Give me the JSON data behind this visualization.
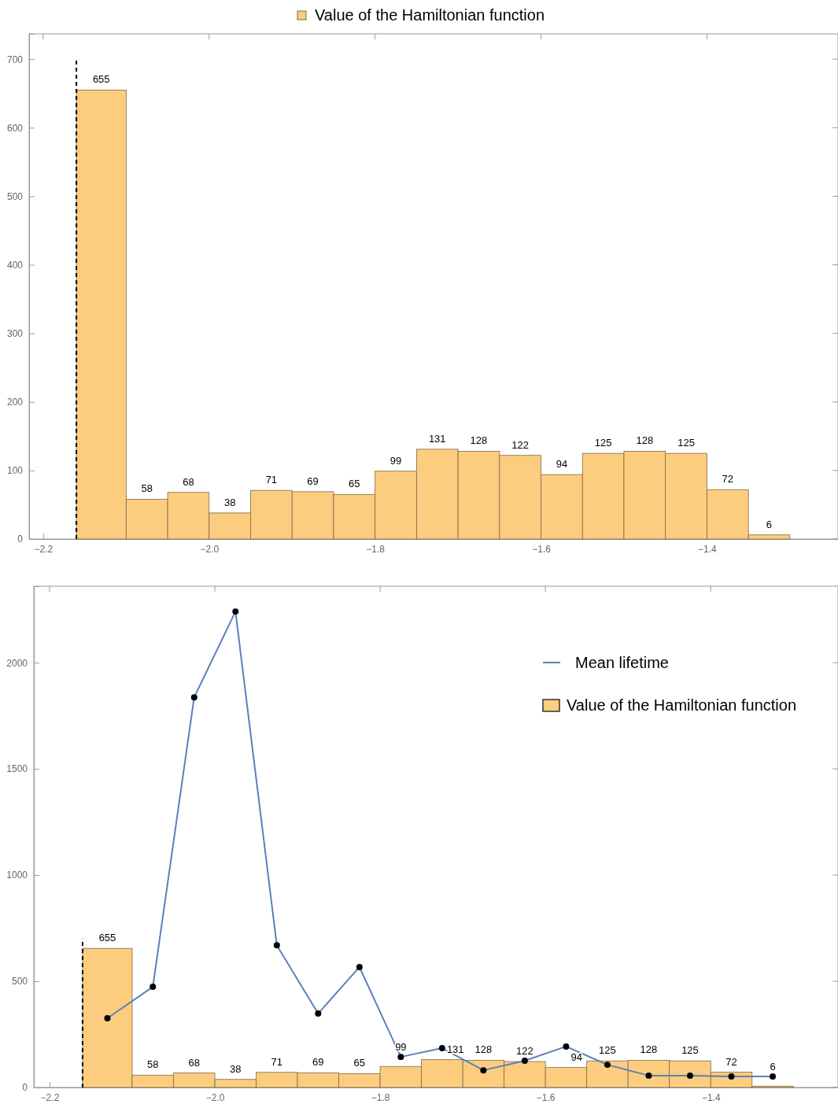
{
  "chart_data": [
    {
      "type": "histogram",
      "bins": [
        -2.16,
        -2.1,
        -2.05,
        -2.0,
        -1.95,
        -1.9,
        -1.85,
        -1.8,
        -1.75,
        -1.7,
        -1.65,
        -1.6,
        -1.55,
        -1.5,
        -1.45,
        -1.4,
        -1.35,
        -1.3
      ],
      "series": [
        {
          "name": "Value of the Hamiltonian function",
          "color": "#fccd7f",
          "values": [
            655,
            58,
            68,
            38,
            71,
            69,
            65,
            99,
            131,
            128,
            122,
            94,
            125,
            128,
            125,
            72,
            6
          ],
          "value_labels": [
            "655",
            "58",
            "68",
            "38",
            "71",
            "69",
            "65",
            "99",
            "131",
            "128",
            "122",
            "94",
            "125",
            "128",
            "125",
            "72",
            "6"
          ]
        }
      ],
      "xlim": [
        -2.217,
        -1.242
      ],
      "ylim": [
        0,
        737
      ],
      "xticks": [
        {
          "value": -2.2,
          "label": "−2.2"
        },
        {
          "value": -2.0,
          "label": "−2.0"
        },
        {
          "value": -1.8,
          "label": "−1.8"
        },
        {
          "value": -1.6,
          "label": "−1.6"
        },
        {
          "value": -1.4,
          "label": "−1.4"
        }
      ],
      "yticks": [
        0,
        100,
        200,
        300,
        400,
        500,
        600,
        700
      ],
      "ref_lines": [
        {
          "axis": "x",
          "value": -2.16,
          "line_style": "dashed",
          "color": "#000000"
        }
      ],
      "legend": "top",
      "grid": false
    },
    {
      "type": "histogram",
      "bins": [
        -2.16,
        -2.1,
        -2.05,
        -2.0,
        -1.95,
        -1.9,
        -1.85,
        -1.8,
        -1.75,
        -1.7,
        -1.65,
        -1.6,
        -1.55,
        -1.5,
        -1.45,
        -1.4,
        -1.35,
        -1.3
      ],
      "series": [
        {
          "name": "Mean lifetime",
          "type": "line",
          "color": "#5b80bd",
          "marker": "circle",
          "x": [
            -2.13,
            -2.075,
            -2.025,
            -1.975,
            -1.925,
            -1.875,
            -1.825,
            -1.775,
            -1.725,
            -1.675,
            -1.625,
            -1.575,
            -1.525,
            -1.475,
            -1.425,
            -1.375,
            -1.325
          ],
          "values": [
            326,
            474,
            1837,
            2241,
            670,
            348,
            567,
            144,
            185,
            81,
            126,
            193,
            107,
            56,
            56,
            52,
            52
          ]
        },
        {
          "name": "Value of the Hamiltonian function",
          "color": "#fccd7f",
          "values": [
            655,
            58,
            68,
            38,
            71,
            69,
            65,
            99,
            131,
            128,
            122,
            94,
            125,
            128,
            125,
            72,
            6
          ],
          "value_labels": [
            "655",
            "58",
            "68",
            "38",
            "71",
            "69",
            "65",
            "99",
            "131",
            "128",
            "122",
            "94",
            "125",
            "128",
            "125",
            "72",
            "6"
          ]
        }
      ],
      "xlim": [
        -2.219,
        -1.246
      ],
      "ylim": [
        0,
        2360
      ],
      "xticks": [
        {
          "value": -2.2,
          "label": "−2.2"
        },
        {
          "value": -2.0,
          "label": "−2.0"
        },
        {
          "value": -1.8,
          "label": "−1.8"
        },
        {
          "value": -1.6,
          "label": "−1.6"
        },
        {
          "value": -1.4,
          "label": "−1.4"
        }
      ],
      "yticks": [
        0,
        500,
        1000,
        1500,
        2000
      ],
      "ref_lines": [
        {
          "axis": "x",
          "value": -2.16,
          "line_style": "dashed",
          "color": "#000000"
        }
      ],
      "legend": "top right",
      "grid": false
    }
  ]
}
